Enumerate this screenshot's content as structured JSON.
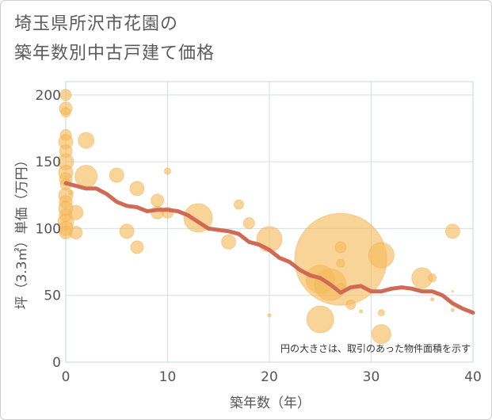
{
  "chart_data": {
    "type": "scatter",
    "title_line1": "埼玉県所沢市花園の",
    "title_line2": "築年数別中古戸建て価格",
    "xlabel": "築年数（年）",
    "ylabel": "坪（3.3㎡）単価（万円）",
    "xlim": [
      0,
      40
    ],
    "ylim": [
      0,
      210
    ],
    "xticks": [
      0,
      10,
      20,
      30,
      40
    ],
    "yticks": [
      0,
      50,
      100,
      150,
      200
    ],
    "note": "円の大きさは、取引のあった物件面積を示す",
    "colors": {
      "bubble": "#f5b95a",
      "bubble_stroke": "#f3b04a",
      "line": "#d06a55",
      "grid": "#d5dde6",
      "plot_border": "#c8d4e0"
    },
    "scatter": [
      {
        "x": 0,
        "y": 200,
        "s": 7
      },
      {
        "x": 0,
        "y": 190,
        "s": 8
      },
      {
        "x": 0,
        "y": 187,
        "s": 6
      },
      {
        "x": 0,
        "y": 170,
        "s": 7
      },
      {
        "x": 0,
        "y": 165,
        "s": 9
      },
      {
        "x": 0,
        "y": 158,
        "s": 8
      },
      {
        "x": 0,
        "y": 150,
        "s": 10
      },
      {
        "x": 0,
        "y": 142,
        "s": 9
      },
      {
        "x": 0,
        "y": 137,
        "s": 8
      },
      {
        "x": 0,
        "y": 133,
        "s": 7
      },
      {
        "x": 0,
        "y": 125,
        "s": 9
      },
      {
        "x": 0,
        "y": 120,
        "s": 8
      },
      {
        "x": 0,
        "y": 115,
        "s": 9
      },
      {
        "x": 0,
        "y": 110,
        "s": 8
      },
      {
        "x": 0,
        "y": 105,
        "s": 10
      },
      {
        "x": 0,
        "y": 100,
        "s": 9
      },
      {
        "x": 0,
        "y": 97,
        "s": 8
      },
      {
        "x": 0.5,
        "y": 127,
        "s": 3
      },
      {
        "x": 1,
        "y": 112,
        "s": 9
      },
      {
        "x": 1,
        "y": 97,
        "s": 8
      },
      {
        "x": 2,
        "y": 166,
        "s": 10
      },
      {
        "x": 2,
        "y": 139,
        "s": 14
      },
      {
        "x": 5,
        "y": 140,
        "s": 9
      },
      {
        "x": 6,
        "y": 98,
        "s": 9
      },
      {
        "x": 7,
        "y": 130,
        "s": 9
      },
      {
        "x": 7,
        "y": 86,
        "s": 8
      },
      {
        "x": 9,
        "y": 121,
        "s": 8
      },
      {
        "x": 9,
        "y": 112,
        "s": 8
      },
      {
        "x": 10,
        "y": 143,
        "s": 4
      },
      {
        "x": 10,
        "y": 112,
        "s": 7
      },
      {
        "x": 13,
        "y": 108,
        "s": 18
      },
      {
        "x": 16,
        "y": 90,
        "s": 9
      },
      {
        "x": 17,
        "y": 118,
        "s": 6
      },
      {
        "x": 18,
        "y": 104,
        "s": 7
      },
      {
        "x": 20,
        "y": 92,
        "s": 16
      },
      {
        "x": 20,
        "y": 35,
        "s": 2
      },
      {
        "x": 25,
        "y": 32,
        "s": 17
      },
      {
        "x": 25,
        "y": 62,
        "s": 18
      },
      {
        "x": 26,
        "y": 58,
        "s": 20
      },
      {
        "x": 27,
        "y": 77,
        "s": 58
      },
      {
        "x": 27,
        "y": 86,
        "s": 7
      },
      {
        "x": 27,
        "y": 74,
        "s": 5
      },
      {
        "x": 27,
        "y": 56,
        "s": 5
      },
      {
        "x": 28,
        "y": 43,
        "s": 6
      },
      {
        "x": 29,
        "y": 38,
        "s": 2
      },
      {
        "x": 31,
        "y": 80,
        "s": 16
      },
      {
        "x": 31,
        "y": 37,
        "s": 4
      },
      {
        "x": 31,
        "y": 21,
        "s": 12
      },
      {
        "x": 35,
        "y": 63,
        "s": 13
      },
      {
        "x": 36,
        "y": 63,
        "s": 5
      },
      {
        "x": 36,
        "y": 47,
        "s": 2
      },
      {
        "x": 38,
        "y": 98,
        "s": 9
      },
      {
        "x": 38,
        "y": 53,
        "s": 1
      },
      {
        "x": 38,
        "y": 39,
        "s": 2
      }
    ],
    "trend": [
      {
        "x": 0,
        "y": 134
      },
      {
        "x": 1,
        "y": 132
      },
      {
        "x": 2,
        "y": 130
      },
      {
        "x": 3,
        "y": 130
      },
      {
        "x": 4,
        "y": 126
      },
      {
        "x": 5,
        "y": 120
      },
      {
        "x": 6,
        "y": 117
      },
      {
        "x": 7,
        "y": 116
      },
      {
        "x": 8,
        "y": 113
      },
      {
        "x": 9,
        "y": 114
      },
      {
        "x": 10,
        "y": 114
      },
      {
        "x": 11,
        "y": 113
      },
      {
        "x": 12,
        "y": 110
      },
      {
        "x": 13,
        "y": 105
      },
      {
        "x": 14,
        "y": 100
      },
      {
        "x": 15,
        "y": 99
      },
      {
        "x": 16,
        "y": 98
      },
      {
        "x": 17,
        "y": 96
      },
      {
        "x": 18,
        "y": 90
      },
      {
        "x": 19,
        "y": 88
      },
      {
        "x": 20,
        "y": 84
      },
      {
        "x": 21,
        "y": 78
      },
      {
        "x": 22,
        "y": 75
      },
      {
        "x": 23,
        "y": 69
      },
      {
        "x": 24,
        "y": 65
      },
      {
        "x": 25,
        "y": 63
      },
      {
        "x": 26,
        "y": 58
      },
      {
        "x": 27,
        "y": 52
      },
      {
        "x": 28,
        "y": 56
      },
      {
        "x": 29,
        "y": 57
      },
      {
        "x": 30,
        "y": 53
      },
      {
        "x": 31,
        "y": 53
      },
      {
        "x": 32,
        "y": 55
      },
      {
        "x": 33,
        "y": 56
      },
      {
        "x": 34,
        "y": 55
      },
      {
        "x": 35,
        "y": 53
      },
      {
        "x": 36,
        "y": 53
      },
      {
        "x": 37,
        "y": 50
      },
      {
        "x": 38,
        "y": 44
      },
      {
        "x": 39,
        "y": 40
      },
      {
        "x": 40,
        "y": 37
      }
    ]
  }
}
